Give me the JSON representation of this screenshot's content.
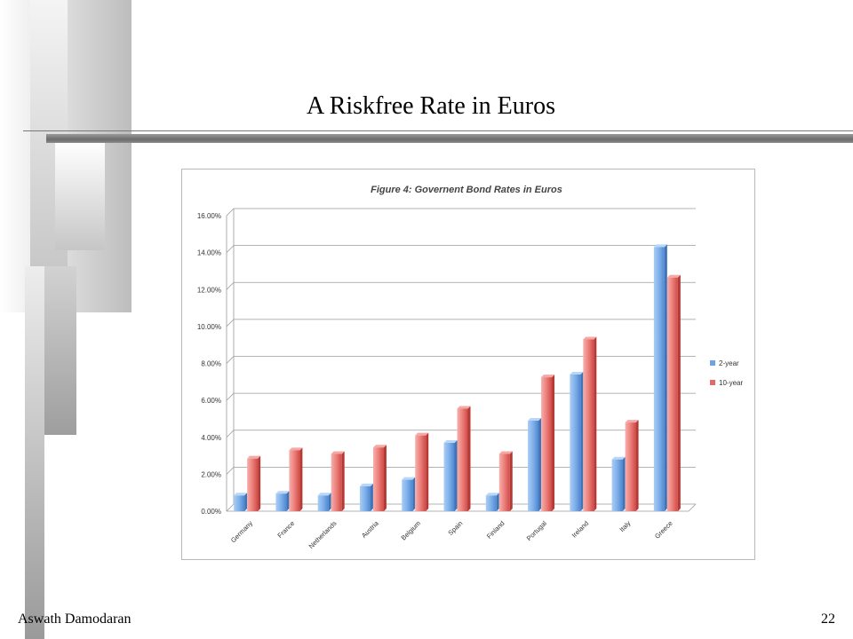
{
  "slide": {
    "title": "A Riskfree Rate in Euros",
    "author": "Aswath Damodaran",
    "page_number": "22"
  },
  "colors": {
    "two_year": "#6fa3e3",
    "ten_year": "#e46a6a",
    "grid": "#9a9a9a"
  },
  "chart_data": {
    "type": "bar",
    "title": "Figure 4: Governent Bond Rates in Euros",
    "categories": [
      "Germany",
      "France",
      "Netherlands",
      "Austria",
      "Belgium",
      "Spain",
      "Finland",
      "Portugal",
      "Ireland",
      "Italy",
      "Greece"
    ],
    "series": [
      {
        "name": "2-year",
        "values": [
          0.85,
          0.95,
          0.85,
          1.35,
          1.7,
          3.7,
          0.85,
          4.9,
          7.4,
          2.8,
          14.3
        ]
      },
      {
        "name": "10-year",
        "values": [
          2.85,
          3.3,
          3.1,
          3.45,
          4.1,
          5.55,
          3.1,
          7.25,
          9.3,
          4.8,
          12.65
        ]
      }
    ],
    "yticks": [
      "0.00%",
      "2.00%",
      "4.00%",
      "6.00%",
      "8.00%",
      "10.00%",
      "12.00%",
      "14.00%",
      "16.00%"
    ],
    "ylim": [
      0,
      16
    ],
    "legend_position": "right",
    "grid": true
  }
}
